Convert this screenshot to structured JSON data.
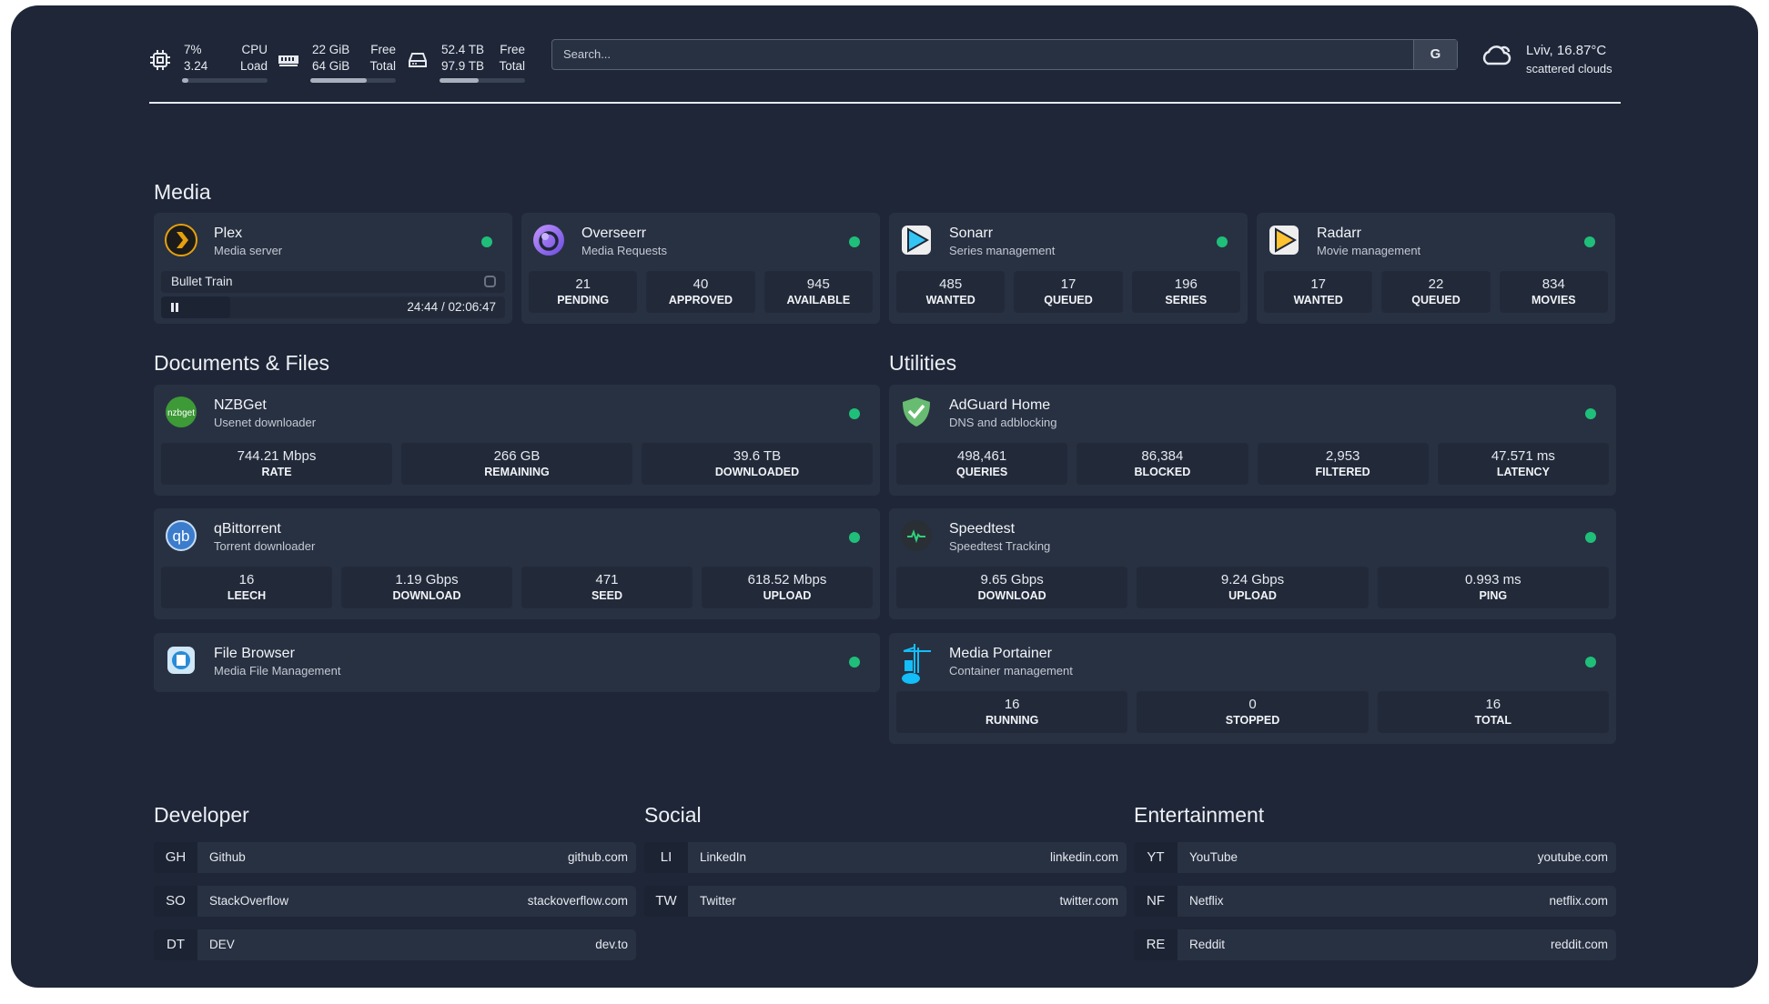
{
  "system": {
    "cpu": {
      "icon": "cpu-icon",
      "values": [
        "7%",
        "3.24"
      ],
      "labels": [
        "CPU",
        "Load"
      ],
      "usage_percent": 7
    },
    "memory": {
      "icon": "memory-icon",
      "values": [
        "22 GiB",
        "64 GiB"
      ],
      "labels": [
        "Free",
        "Total"
      ],
      "usage_percent": 66
    },
    "disk": {
      "icon": "disk-icon",
      "values": [
        "52.4 TB",
        "97.9 TB"
      ],
      "labels": [
        "Free",
        "Total"
      ],
      "usage_percent": 46
    }
  },
  "search": {
    "placeholder": "Search...",
    "button": "G"
  },
  "weather": {
    "icon": "cloud-icon",
    "location": "Lviv, 16.87°C",
    "description": "scattered clouds"
  },
  "colors": {
    "background": "#1e2638",
    "card": "#283142",
    "status_ok": "#1fbf7a"
  },
  "sections": {
    "media": "Media",
    "docs": "Documents & Files",
    "utilities": "Utilities",
    "developer": "Developer",
    "social": "Social",
    "entertainment": "Entertainment"
  },
  "media": [
    {
      "name": "Plex",
      "desc": "Media server",
      "icon": "plex-icon",
      "now_playing": {
        "title": "Bullet Train",
        "time": "24:44 / 02:06:47",
        "state": "paused"
      }
    },
    {
      "name": "Overseerr",
      "desc": "Media Requests",
      "icon": "overseerr-icon",
      "stats": [
        [
          "21",
          "PENDING"
        ],
        [
          "40",
          "APPROVED"
        ],
        [
          "945",
          "AVAILABLE"
        ]
      ]
    },
    {
      "name": "Sonarr",
      "desc": "Series management",
      "icon": "sonarr-icon",
      "stats": [
        [
          "485",
          "WANTED"
        ],
        [
          "17",
          "QUEUED"
        ],
        [
          "196",
          "SERIES"
        ]
      ]
    },
    {
      "name": "Radarr",
      "desc": "Movie management",
      "icon": "radarr-icon",
      "stats": [
        [
          "17",
          "WANTED"
        ],
        [
          "22",
          "QUEUED"
        ],
        [
          "834",
          "MOVIES"
        ]
      ]
    }
  ],
  "docs": [
    {
      "name": "NZBGet",
      "desc": "Usenet downloader",
      "icon": "nzbget-icon",
      "stats": [
        [
          "744.21 Mbps",
          "RATE"
        ],
        [
          "266 GB",
          "REMAINING"
        ],
        [
          "39.6 TB",
          "DOWNLOADED"
        ]
      ]
    },
    {
      "name": "qBittorrent",
      "desc": "Torrent downloader",
      "icon": "qbittorrent-icon",
      "stats": [
        [
          "16",
          "LEECH"
        ],
        [
          "1.19 Gbps",
          "DOWNLOAD"
        ],
        [
          "471",
          "SEED"
        ],
        [
          "618.52 Mbps",
          "UPLOAD"
        ]
      ]
    },
    {
      "name": "File Browser",
      "desc": "Media File Management",
      "icon": "filebrowser-icon"
    }
  ],
  "utilities": [
    {
      "name": "AdGuard Home",
      "desc": "DNS and adblocking",
      "icon": "adguard-shield-icon",
      "stats": [
        [
          "498,461",
          "QUERIES"
        ],
        [
          "86,384",
          "BLOCKED"
        ],
        [
          "2,953",
          "FILTERED"
        ],
        [
          "47.571 ms",
          "LATENCY"
        ]
      ]
    },
    {
      "name": "Speedtest",
      "desc": "Speedtest Tracking",
      "icon": "speedtest-pulse-icon",
      "stats": [
        [
          "9.65 Gbps",
          "DOWNLOAD"
        ],
        [
          "9.24 Gbps",
          "UPLOAD"
        ],
        [
          "0.993 ms",
          "PING"
        ]
      ]
    },
    {
      "name": "Media Portainer",
      "desc": "Container management",
      "icon": "portainer-icon",
      "stats": [
        [
          "16",
          "RUNNING"
        ],
        [
          "0",
          "STOPPED"
        ],
        [
          "16",
          "TOTAL"
        ]
      ]
    }
  ],
  "bookmarks": {
    "developer": [
      {
        "abbr": "GH",
        "name": "Github",
        "url": "github.com"
      },
      {
        "abbr": "SO",
        "name": "StackOverflow",
        "url": "stackoverflow.com"
      },
      {
        "abbr": "DT",
        "name": "DEV",
        "url": "dev.to"
      }
    ],
    "social": [
      {
        "abbr": "LI",
        "name": "LinkedIn",
        "url": "linkedin.com"
      },
      {
        "abbr": "TW",
        "name": "Twitter",
        "url": "twitter.com"
      }
    ],
    "entertainment": [
      {
        "abbr": "YT",
        "name": "YouTube",
        "url": "youtube.com"
      },
      {
        "abbr": "NF",
        "name": "Netflix",
        "url": "netflix.com"
      },
      {
        "abbr": "RE",
        "name": "Reddit",
        "url": "reddit.com"
      }
    ]
  }
}
